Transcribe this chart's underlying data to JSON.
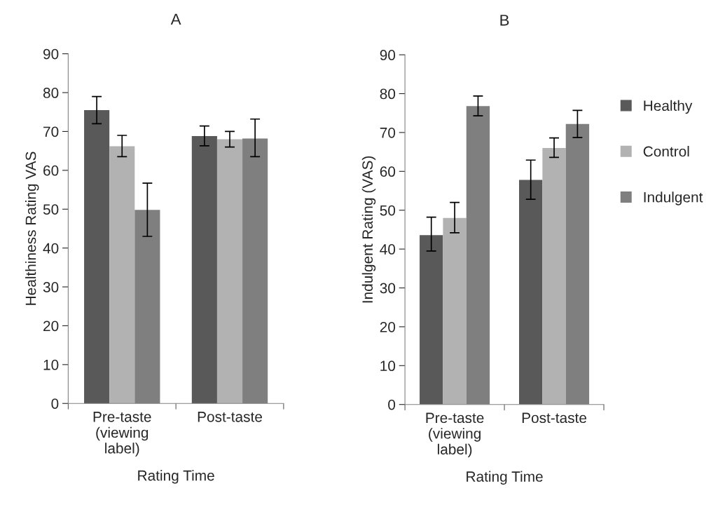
{
  "chart_data": [
    {
      "type": "bar",
      "title": "A",
      "xlabel": "Rating Time",
      "ylabel": "Healthiness Rating VAS",
      "categories": [
        "Pre-taste\n(viewing\nlabel)",
        "Post-taste"
      ],
      "ylim": [
        0,
        90
      ],
      "yticks": [
        0,
        10,
        20,
        30,
        40,
        50,
        60,
        70,
        80,
        90
      ],
      "grid": false,
      "legend": false,
      "series": [
        {
          "color": "#595959",
          "values": [
            75.5,
            68.8
          ],
          "errors": [
            [
              72,
              79
            ],
            [
              66.3,
              71.4
            ]
          ]
        },
        {
          "color": "#b2b2b2",
          "values": [
            66.2,
            68
          ],
          "errors": [
            [
              63.5,
              69
            ],
            [
              66,
              70
            ]
          ]
        },
        {
          "color": "#7f7f7f",
          "values": [
            49.8,
            68.2
          ],
          "errors": [
            [
              43,
              56.7
            ],
            [
              63.5,
              73.2
            ]
          ]
        }
      ]
    },
    {
      "type": "bar",
      "title": "B",
      "xlabel": "Rating Time",
      "ylabel": "Indulgent Rating (VAS)",
      "categories": [
        "Pre-taste\n(viewing\nlabel)",
        "Post-taste"
      ],
      "ylim": [
        0,
        90
      ],
      "yticks": [
        0,
        10,
        20,
        30,
        40,
        50,
        60,
        70,
        80,
        90
      ],
      "grid": false,
      "legend": "right",
      "series": [
        {
          "name": "Healthy",
          "color": "#595959",
          "values": [
            43.6,
            57.8
          ],
          "errors": [
            [
              39.5,
              48.2
            ],
            [
              52.8,
              62.9
            ]
          ]
        },
        {
          "name": "Control",
          "color": "#b2b2b2",
          "values": [
            48,
            66
          ],
          "errors": [
            [
              44.2,
              52
            ],
            [
              63.6,
              68.6
            ]
          ]
        },
        {
          "name": "Indulgent",
          "color": "#7f7f7f",
          "values": [
            76.8,
            72.2
          ],
          "errors": [
            [
              74.3,
              79.4
            ],
            [
              68.7,
              75.7
            ]
          ]
        }
      ]
    }
  ]
}
